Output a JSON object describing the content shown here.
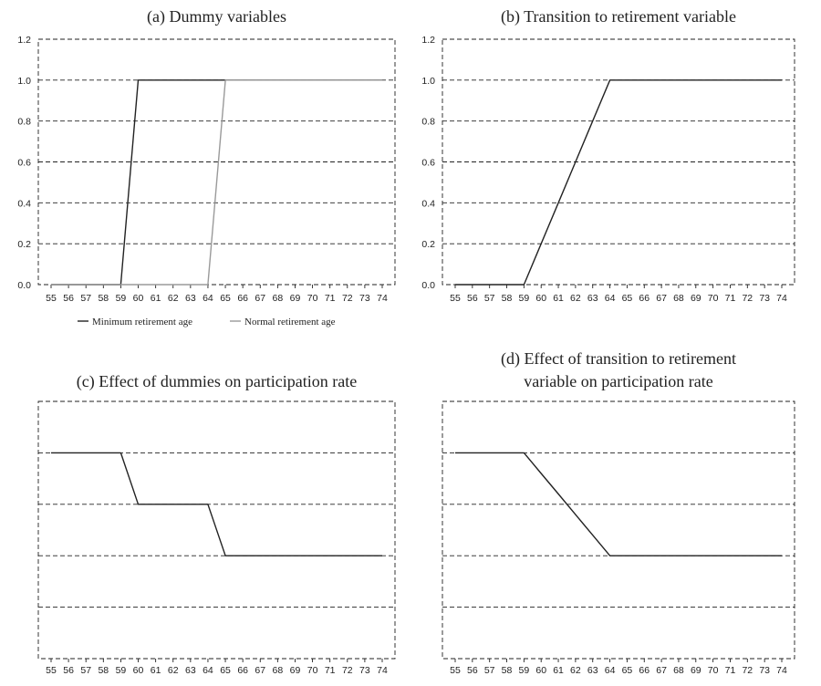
{
  "chart_data": [
    {
      "type": "line",
      "title": "(a) Dummy variables",
      "xlabel": "",
      "ylabel": "",
      "ylim": [
        0,
        1.2
      ],
      "y_ticks": [
        "0.0",
        "0.2",
        "0.4",
        "0.6",
        "0.8",
        "1.0",
        "1.2"
      ],
      "categories": [
        "55",
        "56",
        "57",
        "58",
        "59",
        "60",
        "61",
        "62",
        "63",
        "64",
        "65",
        "66",
        "67",
        "68",
        "69",
        "70",
        "71",
        "72",
        "73",
        "74"
      ],
      "grid": true,
      "legend": "bottom",
      "series": [
        {
          "name": "Minimum retirement age",
          "color": "#222222",
          "values": [
            0,
            0,
            0,
            0,
            0,
            1,
            1,
            1,
            1,
            1,
            1,
            1,
            1,
            1,
            1,
            1,
            1,
            1,
            1,
            1
          ]
        },
        {
          "name": "Normal retirement age",
          "color": "#9a9a9a",
          "values": [
            0,
            0,
            0,
            0,
            0,
            0,
            0,
            0,
            0,
            0,
            1,
            1,
            1,
            1,
            1,
            1,
            1,
            1,
            1,
            1
          ]
        }
      ]
    },
    {
      "type": "line",
      "title": "(b) Transition to retirement variable",
      "xlabel": "",
      "ylabel": "",
      "ylim": [
        0,
        1.2
      ],
      "y_ticks": [
        "0.0",
        "0.2",
        "0.4",
        "0.6",
        "0.8",
        "1.0",
        "1.2"
      ],
      "categories": [
        "55",
        "56",
        "57",
        "58",
        "59",
        "60",
        "61",
        "62",
        "63",
        "64",
        "65",
        "66",
        "67",
        "68",
        "69",
        "70",
        "71",
        "72",
        "73",
        "74"
      ],
      "grid": true,
      "series": [
        {
          "name": "Transition to retirement",
          "color": "#222222",
          "values": [
            0,
            0,
            0,
            0,
            0,
            0.2,
            0.4,
            0.6,
            0.8,
            1,
            1,
            1,
            1,
            1,
            1,
            1,
            1,
            1,
            1,
            1
          ]
        }
      ]
    },
    {
      "type": "line",
      "title": "(c) Effect of dummies on participation rate",
      "xlabel": "",
      "ylabel": "",
      "ylim": [
        0,
        5
      ],
      "y_ticks": [],
      "categories": [
        "55",
        "56",
        "57",
        "58",
        "59",
        "60",
        "61",
        "62",
        "63",
        "64",
        "65",
        "66",
        "67",
        "68",
        "69",
        "70",
        "71",
        "72",
        "73",
        "74"
      ],
      "grid": true,
      "series": [
        {
          "name": "Participation rate",
          "color": "#222222",
          "values": [
            4,
            4,
            4,
            4,
            4,
            3,
            3,
            3,
            3,
            3,
            2,
            2,
            2,
            2,
            2,
            2,
            2,
            2,
            2,
            2
          ]
        }
      ]
    },
    {
      "type": "line",
      "title": "(d) Effect of transition to retirement variable on participation rate",
      "title_lines": [
        "(d) Effect of transition to retirement",
        "variable on participation rate"
      ],
      "xlabel": "",
      "ylabel": "",
      "ylim": [
        0,
        5
      ],
      "y_ticks": [],
      "categories": [
        "55",
        "56",
        "57",
        "58",
        "59",
        "60",
        "61",
        "62",
        "63",
        "64",
        "65",
        "66",
        "67",
        "68",
        "69",
        "70",
        "71",
        "72",
        "73",
        "74"
      ],
      "grid": true,
      "series": [
        {
          "name": "Participation rate",
          "color": "#222222",
          "values": [
            4,
            4,
            4,
            4,
            4,
            3.6,
            3.2,
            2.8,
            2.4,
            2,
            2,
            2,
            2,
            2,
            2,
            2,
            2,
            2,
            2,
            2
          ]
        }
      ]
    }
  ]
}
